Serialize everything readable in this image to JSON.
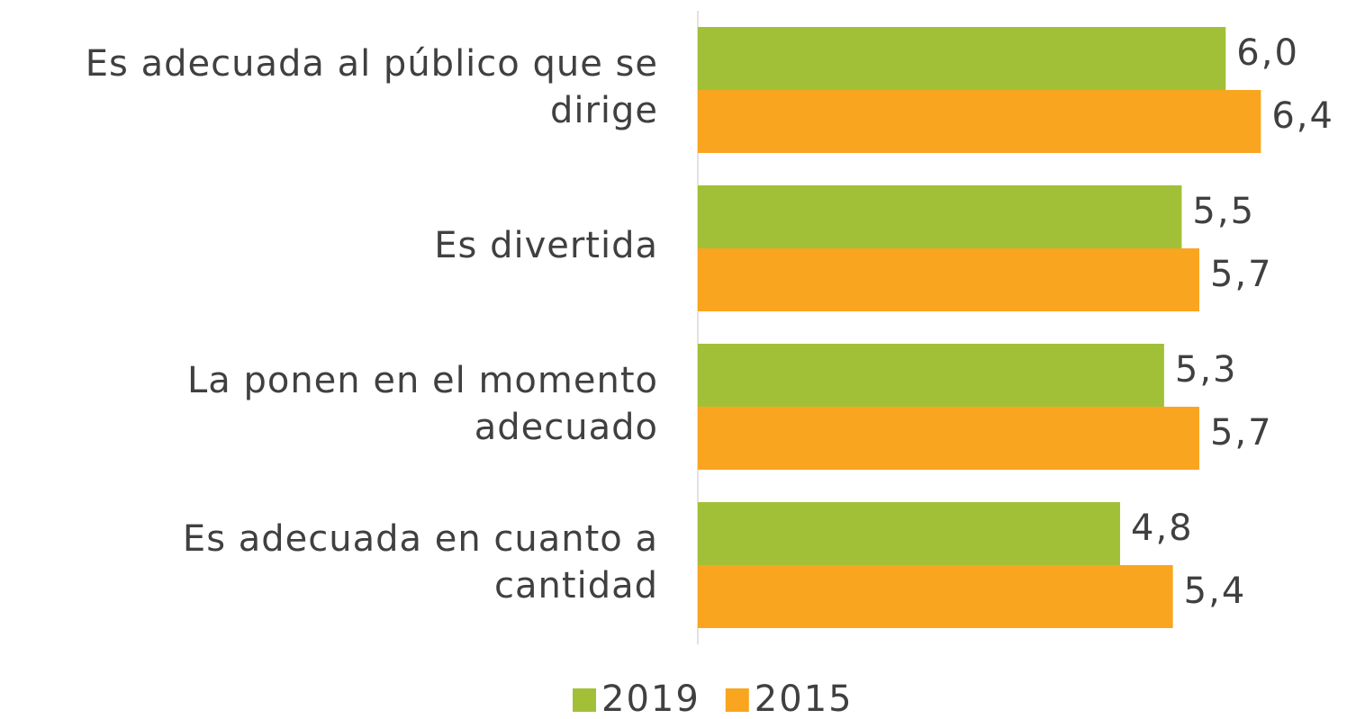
{
  "chart_data": {
    "type": "hbar",
    "categories": [
      "Es adecuada al público que se dirige",
      "Es divertida",
      "La ponen en el momento adecuado",
      "Es adecuada en cuanto a cantidad"
    ],
    "series": [
      {
        "name": "2019",
        "color": "#a2c037",
        "values": [
          6.0,
          5.5,
          5.3,
          4.8
        ],
        "value_labels": [
          "6,0",
          "5,5",
          "5,3",
          "4,8"
        ]
      },
      {
        "name": "2015",
        "color": "#f9a520",
        "values": [
          6.4,
          5.7,
          5.7,
          5.4
        ],
        "value_labels": [
          "6,4",
          "5,7",
          "5,7",
          "5,4"
        ]
      }
    ],
    "xlim": [
      0,
      7
    ]
  }
}
